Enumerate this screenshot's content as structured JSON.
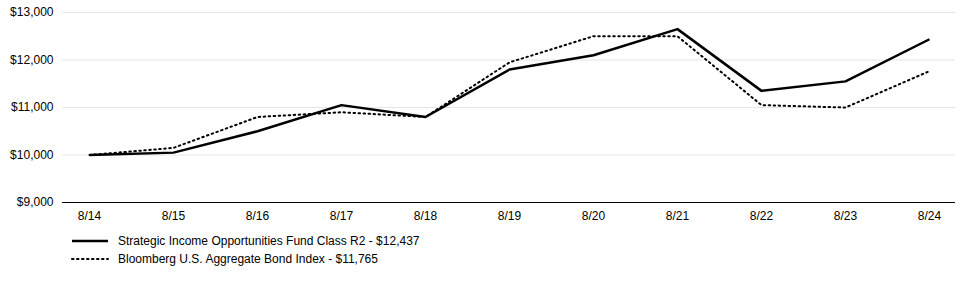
{
  "chart_data": {
    "type": "line",
    "categories": [
      "8/14",
      "8/15",
      "8/16",
      "8/17",
      "8/18",
      "8/19",
      "8/20",
      "8/21",
      "8/22",
      "8/23",
      "8/24"
    ],
    "series": [
      {
        "name": "Strategic Income Opportunities Fund Class R2 - $12,437",
        "color": "#000000",
        "line_style": "solid",
        "values": [
          10000,
          10050,
          10500,
          11050,
          10800,
          11800,
          12100,
          12650,
          11350,
          11550,
          12437
        ]
      },
      {
        "name": "Bloomberg U.S. Aggregate Bond Index - $11,765",
        "color": "#000000",
        "line_style": "dotted",
        "values": [
          10000,
          10150,
          10800,
          10900,
          10800,
          11950,
          12500,
          12500,
          11050,
          11000,
          11765
        ]
      }
    ],
    "ylim": [
      9000,
      13000
    ],
    "yticks": [
      {
        "value": 9000,
        "label": "$9,000"
      },
      {
        "value": 10000,
        "label": "$10,000"
      },
      {
        "value": 11000,
        "label": "$11,000"
      },
      {
        "value": 12000,
        "label": "$12,000"
      },
      {
        "value": 13000,
        "label": "$13,000"
      }
    ],
    "grid": true,
    "legend": "bottom"
  }
}
